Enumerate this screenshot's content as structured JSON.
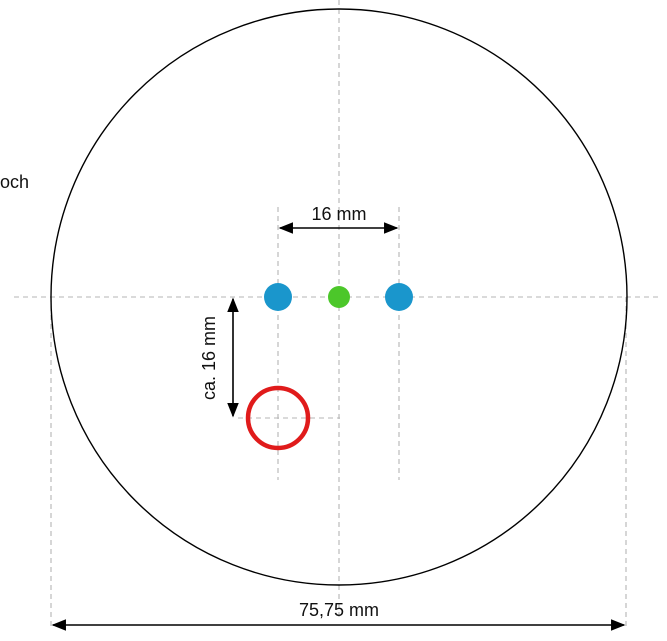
{
  "labels": {
    "offscreen_word": "och",
    "hole_spacing": "16 mm",
    "vertical_offset": "ca. 16 mm",
    "diameter": "75,75 mm"
  },
  "colors": {
    "outline": "#000000",
    "guide": "#b4b4b4",
    "hole": "#1a96cc",
    "center": "#4cc72a",
    "marker": "#e01b1b"
  }
}
